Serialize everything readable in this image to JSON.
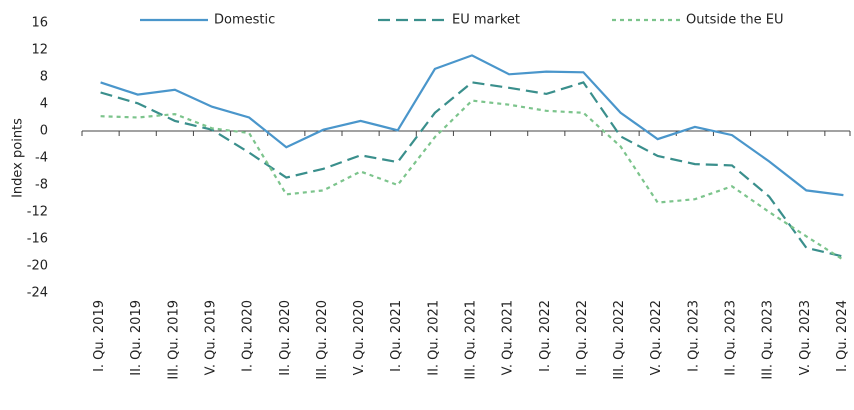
{
  "chart_data": {
    "type": "line",
    "y_label": "Index points",
    "categories": [
      "I. Qu. 2019",
      "II. Qu. 2019",
      "III. Qu. 2019",
      "V. Qu. 2019",
      "I. Qu. 2020",
      "II. Qu. 2020",
      "III. Qu. 2020",
      "V. Qu. 2020",
      "I. Qu. 2021",
      "II. Qu. 2021",
      "III. Qu. 2021",
      "V. Qu. 2021",
      "I. Qu. 2022",
      "II. Qu. 2022",
      "III. Qu. 2022",
      "V. Qu. 2022",
      "I. Qu. 2023",
      "II. Qu. 2023",
      "III. Qu. 2023",
      "V. Qu. 2023",
      "I. Qu. 2024"
    ],
    "series": [
      {
        "name": "Domestic",
        "color": "#4a96cb",
        "dash": "none",
        "values": [
          7.2,
          5.4,
          6.1,
          3.6,
          2.0,
          -2.4,
          0.2,
          1.5,
          0.1,
          9.2,
          11.2,
          8.4,
          8.8,
          8.7,
          2.7,
          -1.2,
          0.6,
          -0.6,
          -4.5,
          -8.8,
          -9.5
        ]
      },
      {
        "name": "EU market",
        "color": "#3a8f8c",
        "dash": "12,6",
        "values": [
          5.7,
          4.1,
          1.5,
          0.2,
          -3.2,
          -6.9,
          -5.6,
          -3.6,
          -4.6,
          2.7,
          7.2,
          6.4,
          5.5,
          7.2,
          -0.8,
          -3.7,
          -4.9,
          -5.1,
          -9.7,
          -17.3,
          -18.6
        ]
      },
      {
        "name": "Outside the EU",
        "color": "#7cc48c",
        "dash": "4,4",
        "values": [
          2.2,
          2.0,
          2.5,
          0.4,
          -0.3,
          -9.4,
          -8.8,
          -6.0,
          -8.0,
          -0.9,
          4.5,
          3.9,
          3.0,
          2.7,
          -2.3,
          -10.6,
          -10.1,
          -8.2,
          -12.0,
          -15.6,
          -19.1
        ]
      }
    ],
    "ylim": [
      -24,
      16
    ],
    "yticks": [
      -24,
      -20,
      -16,
      -12,
      -8,
      -4,
      0,
      4,
      8,
      12,
      16
    ],
    "legend": "top"
  }
}
